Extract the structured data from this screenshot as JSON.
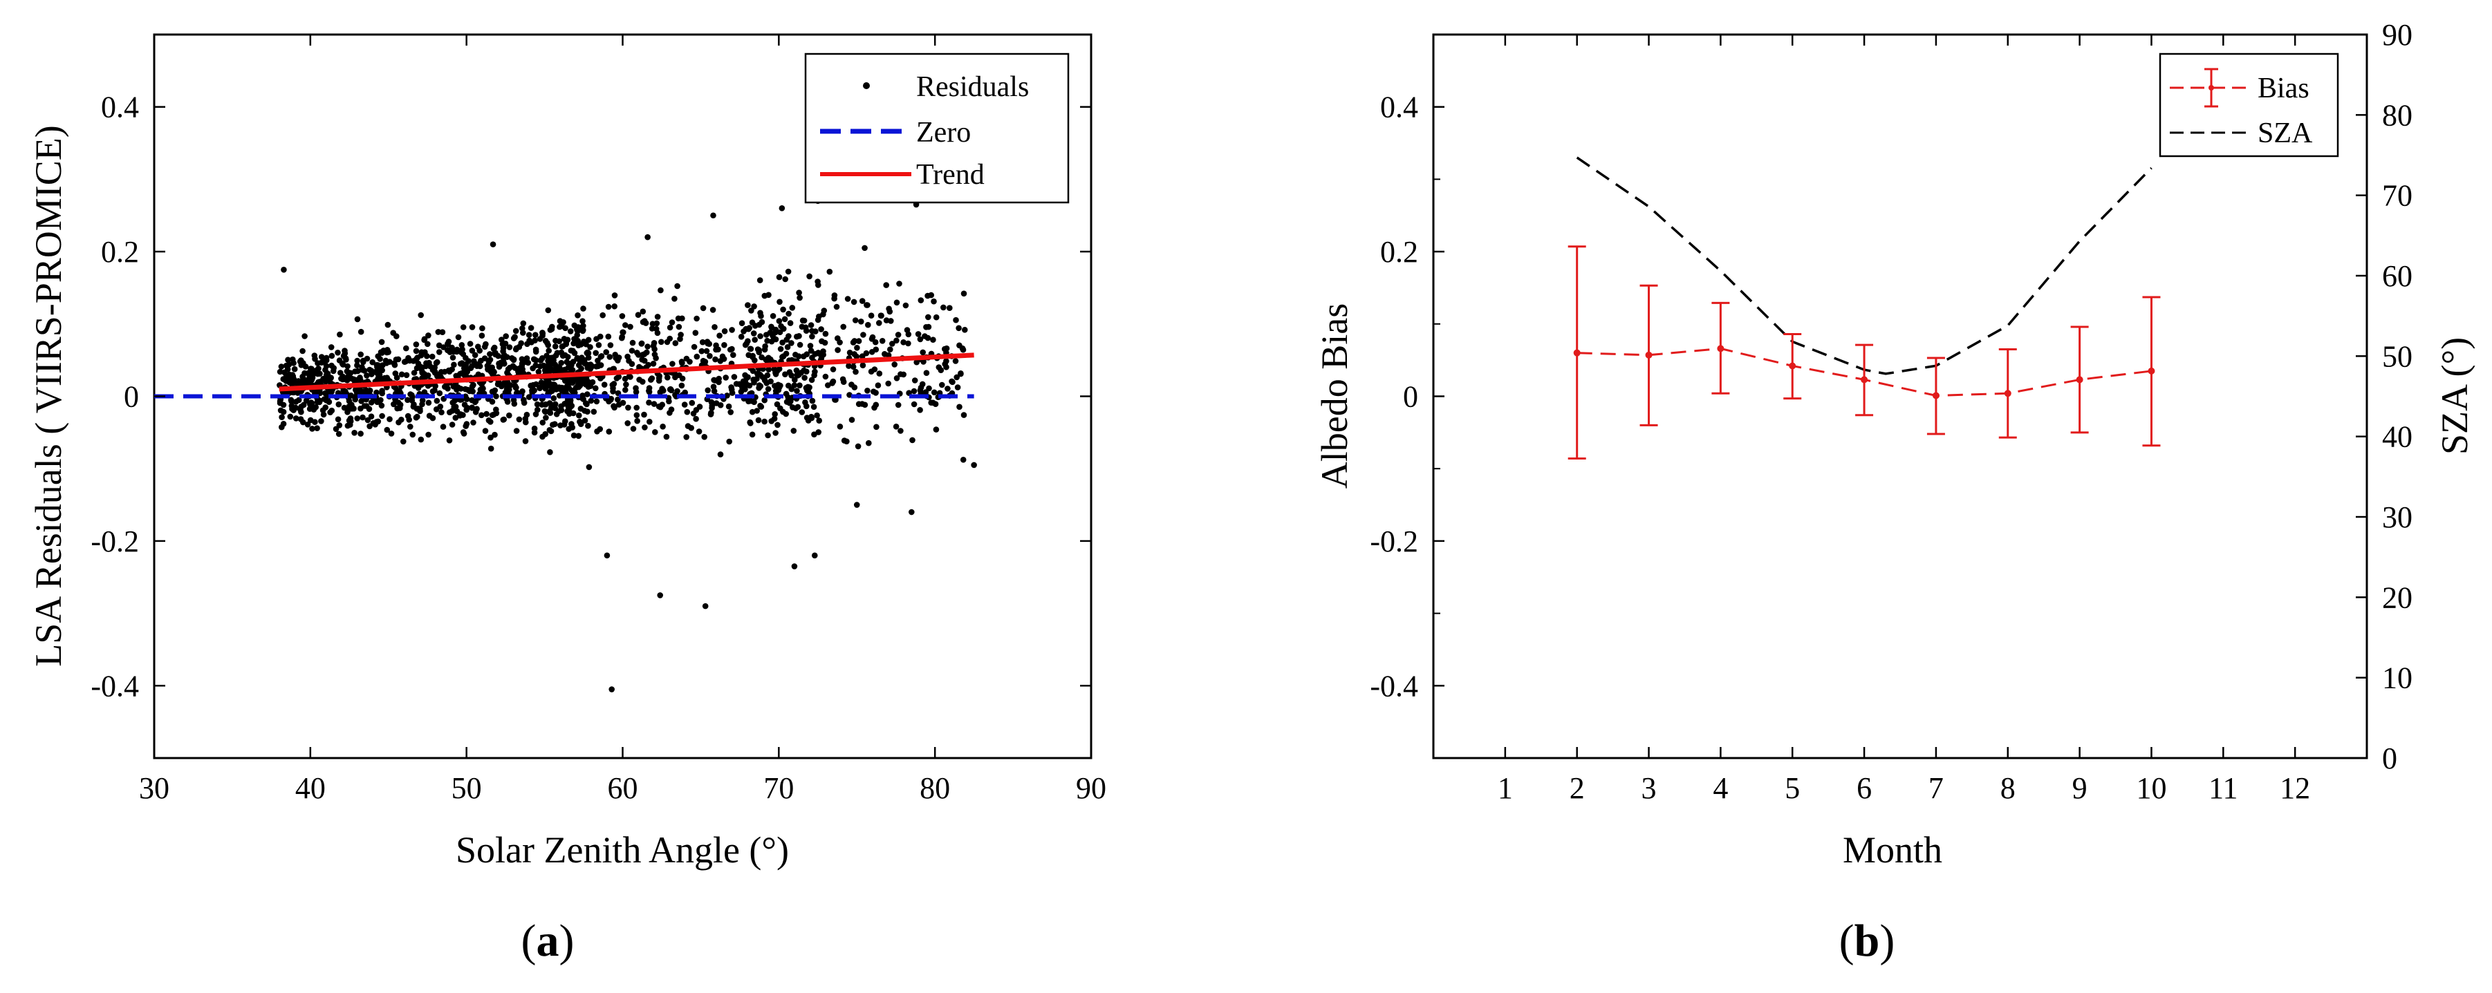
{
  "figure": {
    "panels": [
      {
        "label_open": "(",
        "label_letter": "a",
        "label_close": ")"
      },
      {
        "label_open": "(",
        "label_letter": "b",
        "label_close": ")"
      }
    ]
  },
  "chart_data": [
    {
      "type": "scatter",
      "xlabel": "Solar Zenith Angle (°)",
      "ylabel": "LSA Residuals ( VIIRS-PROMICE)",
      "xlim": [
        30,
        90
      ],
      "ylim": [
        -0.5,
        0.5
      ],
      "xticks": [
        30,
        40,
        50,
        60,
        70,
        80,
        90
      ],
      "xtick_labels": [
        "30",
        "40",
        "50",
        "60",
        "70",
        "80",
        "90"
      ],
      "yticks": [
        -0.4,
        -0.2,
        0,
        0.2,
        0.4
      ],
      "ytick_labels": [
        "-0.4",
        "-0.2",
        "0",
        "0.2",
        "0.4"
      ],
      "grid": false,
      "legend_position": "top-right",
      "legend": [
        "Residuals",
        "Zero",
        "Trend"
      ],
      "colors": {
        "residuals": "#000000",
        "zero": "#0a14d6",
        "trend": "#ee1111"
      },
      "residuals_summary": {
        "x_range": [
          37.5,
          82.5
        ],
        "dense_y_range": [
          -0.15,
          0.2
        ],
        "extremes": [
          {
            "x": 59.3,
            "y": -0.405
          },
          {
            "x": 59.0,
            "y": -0.22
          },
          {
            "x": 65.3,
            "y": -0.29
          },
          {
            "x": 62.4,
            "y": -0.275
          },
          {
            "x": 71.0,
            "y": -0.235
          },
          {
            "x": 72.3,
            "y": -0.22
          },
          {
            "x": 75.0,
            "y": -0.15
          },
          {
            "x": 78.5,
            "y": -0.16
          },
          {
            "x": 82.5,
            "y": -0.095
          },
          {
            "x": 72.5,
            "y": 0.27
          },
          {
            "x": 78.8,
            "y": 0.265
          },
          {
            "x": 65.8,
            "y": 0.25
          },
          {
            "x": 70.2,
            "y": 0.26
          },
          {
            "x": 61.6,
            "y": 0.22
          },
          {
            "x": 75.5,
            "y": 0.205
          },
          {
            "x": 51.7,
            "y": 0.21
          },
          {
            "x": 38.3,
            "y": 0.175
          }
        ]
      },
      "zero_line": {
        "x": [
          30,
          82.5
        ],
        "y": [
          0,
          0
        ]
      },
      "trend_line": {
        "x": [
          38,
          82.5
        ],
        "y": [
          0.01,
          0.057
        ]
      }
    },
    {
      "type": "line",
      "xlabel": "Month",
      "ylabel": "Albedo Bias",
      "y2label": "SZA (°)",
      "xlim": [
        0,
        13
      ],
      "ylim": [
        -0.5,
        0.5
      ],
      "y2lim": [
        0,
        90
      ],
      "xticks": [
        1,
        2,
        3,
        4,
        5,
        6,
        7,
        8,
        9,
        10,
        11,
        12
      ],
      "xtick_labels": [
        "1",
        "2",
        "3",
        "4",
        "5",
        "6",
        "7",
        "8",
        "9",
        "10",
        "11",
        "12"
      ],
      "yticks": [
        -0.4,
        -0.2,
        0,
        0.2,
        0.4
      ],
      "ytick_labels": [
        "-0.4",
        "-0.2",
        "0",
        "0.2",
        "0.4"
      ],
      "y2ticks": [
        0,
        10,
        20,
        30,
        40,
        50,
        60,
        70,
        80,
        90
      ],
      "y2tick_labels": [
        "0",
        "10",
        "20",
        "30",
        "40",
        "50",
        "60",
        "70",
        "80",
        "90"
      ],
      "grid": false,
      "legend_position": "top-right",
      "legend": [
        "Bias",
        "SZA"
      ],
      "colors": {
        "bias": "#e11b1b",
        "sza": "#000000"
      },
      "series": [
        {
          "name": "Bias",
          "x": [
            2,
            3,
            4,
            5,
            6,
            7,
            8,
            9,
            10
          ],
          "values": [
            0.06,
            0.057,
            0.066,
            0.042,
            0.023,
            0.001,
            0.004,
            0.023,
            0.035
          ],
          "err_low": [
            -0.086,
            -0.04,
            0.004,
            -0.003,
            -0.026,
            -0.052,
            -0.057,
            -0.05,
            -0.068
          ],
          "err_high": [
            0.207,
            0.153,
            0.129,
            0.086,
            0.071,
            0.053,
            0.065,
            0.096,
            0.137
          ]
        },
        {
          "name": "SZA",
          "axis": "right",
          "x": [
            2,
            3,
            4,
            5,
            6,
            6.3,
            7,
            8,
            9,
            10
          ],
          "values": [
            74.7,
            68.6,
            60.6,
            51.8,
            48.3,
            47.8,
            48.8,
            53.8,
            64.3,
            73.4
          ]
        }
      ]
    }
  ]
}
